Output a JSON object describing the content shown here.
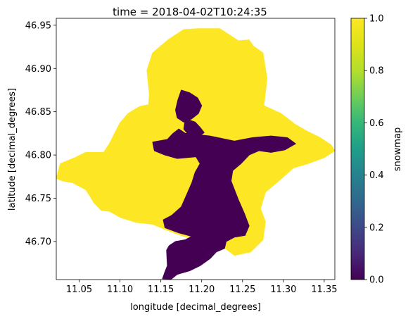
{
  "chart_data": {
    "type": "heatmap",
    "title": "time = 2018-04-02T10:24:35",
    "xlabel": "longitude [decimal_degrees]",
    "ylabel": "latitude [decimal_degrees]",
    "xlim": [
      11.022,
      11.363
    ],
    "ylim": [
      46.656,
      46.958
    ],
    "x_ticks": [
      11.05,
      11.1,
      11.15,
      11.2,
      11.25,
      11.3,
      11.35
    ],
    "x_tick_labels": [
      "11.05",
      "11.10",
      "11.15",
      "11.20",
      "11.25",
      "11.30",
      "11.35"
    ],
    "y_ticks": [
      46.7,
      46.75,
      46.8,
      46.85,
      46.9,
      46.95
    ],
    "y_tick_labels": [
      "46.70",
      "46.75",
      "46.80",
      "46.85",
      "46.90",
      "46.95"
    ],
    "colorbar": {
      "label": "snowmap",
      "range": [
        0.0,
        1.0
      ],
      "ticks": [
        0.0,
        0.2,
        0.4,
        0.6,
        0.8,
        1.0
      ],
      "tick_labels": [
        "0.0",
        "0.2",
        "0.4",
        "0.6",
        "0.8",
        "1.0"
      ],
      "colormap": "viridis"
    },
    "values_present": [
      0,
      1
    ],
    "regions": [
      {
        "value": 1,
        "color": "#fde725",
        "outline": [
          [
            11.022,
            46.773
          ],
          [
            11.027,
            46.79
          ],
          [
            11.045,
            46.797
          ],
          [
            11.058,
            46.803
          ],
          [
            11.08,
            46.803
          ],
          [
            11.087,
            46.813
          ],
          [
            11.095,
            46.828
          ],
          [
            11.1,
            46.837
          ],
          [
            11.11,
            46.848
          ],
          [
            11.124,
            46.856
          ],
          [
            11.135,
            46.858
          ],
          [
            11.136,
            46.87
          ],
          [
            11.133,
            46.898
          ],
          [
            11.14,
            46.918
          ],
          [
            11.16,
            46.934
          ],
          [
            11.178,
            46.945
          ],
          [
            11.195,
            46.946
          ],
          [
            11.222,
            46.946
          ],
          [
            11.245,
            46.932
          ],
          [
            11.258,
            46.933
          ],
          [
            11.263,
            46.926
          ],
          [
            11.275,
            46.918
          ],
          [
            11.28,
            46.888
          ],
          [
            11.276,
            46.857
          ],
          [
            11.297,
            46.848
          ],
          [
            11.315,
            46.835
          ],
          [
            11.33,
            46.827
          ],
          [
            11.345,
            46.82
          ],
          [
            11.358,
            46.812
          ],
          [
            11.363,
            46.805
          ],
          [
            11.35,
            46.797
          ],
          [
            11.33,
            46.79
          ],
          [
            11.312,
            46.785
          ],
          [
            11.298,
            46.773
          ],
          [
            11.278,
            46.757
          ],
          [
            11.272,
            46.738
          ],
          [
            11.278,
            46.723
          ],
          [
            11.275,
            46.702
          ],
          [
            11.26,
            46.688
          ],
          [
            11.24,
            46.684
          ],
          [
            11.222,
            46.697
          ],
          [
            11.213,
            46.705
          ],
          [
            11.205,
            46.702
          ],
          [
            11.178,
            46.706
          ],
          [
            11.158,
            46.713
          ],
          [
            11.14,
            46.72
          ],
          [
            11.12,
            46.722
          ],
          [
            11.1,
            46.728
          ],
          [
            11.087,
            46.735
          ],
          [
            11.077,
            46.736
          ],
          [
            11.068,
            46.745
          ],
          [
            11.063,
            46.753
          ],
          [
            11.058,
            46.76
          ],
          [
            11.042,
            46.768
          ],
          [
            11.03,
            46.77
          ]
        ]
      },
      {
        "value": 0,
        "color": "#440154",
        "outline": [
          [
            11.155,
            46.665
          ],
          [
            11.158,
            46.672
          ],
          [
            11.157,
            46.69
          ],
          [
            11.16,
            46.695
          ],
          [
            11.168,
            46.7
          ],
          [
            11.18,
            46.702
          ],
          [
            11.188,
            46.706
          ],
          [
            11.172,
            46.71
          ],
          [
            11.155,
            46.716
          ],
          [
            11.153,
            46.725
          ],
          [
            11.163,
            46.73
          ],
          [
            11.175,
            46.74
          ],
          [
            11.182,
            46.755
          ],
          [
            11.188,
            46.768
          ],
          [
            11.192,
            46.78
          ],
          [
            11.198,
            46.79
          ],
          [
            11.193,
            46.798
          ],
          [
            11.17,
            46.796
          ],
          [
            11.155,
            46.8
          ],
          [
            11.142,
            46.805
          ],
          [
            11.14,
            46.815
          ],
          [
            11.158,
            46.818
          ],
          [
            11.165,
            46.825
          ],
          [
            11.172,
            46.83
          ],
          [
            11.18,
            46.825
          ],
          [
            11.21,
            46.822
          ],
          [
            11.24,
            46.816
          ],
          [
            11.262,
            46.82
          ],
          [
            11.285,
            46.822
          ],
          [
            11.305,
            46.82
          ],
          [
            11.315,
            46.813
          ],
          [
            11.302,
            46.806
          ],
          [
            11.285,
            46.803
          ],
          [
            11.27,
            46.805
          ],
          [
            11.258,
            46.8
          ],
          [
            11.248,
            46.79
          ],
          [
            11.238,
            46.782
          ],
          [
            11.236,
            46.77
          ],
          [
            11.24,
            46.76
          ],
          [
            11.245,
            46.748
          ],
          [
            11.252,
            46.733
          ],
          [
            11.258,
            46.718
          ],
          [
            11.253,
            46.707
          ],
          [
            11.24,
            46.705
          ],
          [
            11.23,
            46.7
          ],
          [
            11.228,
            46.692
          ],
          [
            11.218,
            46.688
          ],
          [
            11.21,
            46.68
          ],
          [
            11.198,
            46.672
          ],
          [
            11.185,
            46.666
          ],
          [
            11.17,
            46.662
          ],
          [
            11.162,
            46.656
          ],
          [
            11.152,
            46.657
          ]
        ]
      },
      {
        "value": 0,
        "color": "#440154",
        "outline": [
          [
            11.175,
            46.875
          ],
          [
            11.185,
            46.872
          ],
          [
            11.195,
            46.866
          ],
          [
            11.2,
            46.857
          ],
          [
            11.196,
            46.848
          ],
          [
            11.188,
            46.842
          ],
          [
            11.178,
            46.838
          ],
          [
            11.17,
            46.843
          ],
          [
            11.168,
            46.852
          ],
          [
            11.171,
            46.864
          ]
        ]
      },
      {
        "value": 0,
        "color": "#440154",
        "outline": [
          [
            11.18,
            46.842
          ],
          [
            11.192,
            46.838
          ],
          [
            11.198,
            46.832
          ],
          [
            11.203,
            46.826
          ],
          [
            11.195,
            46.82
          ],
          [
            11.185,
            46.822
          ],
          [
            11.178,
            46.83
          ]
        ]
      }
    ]
  }
}
